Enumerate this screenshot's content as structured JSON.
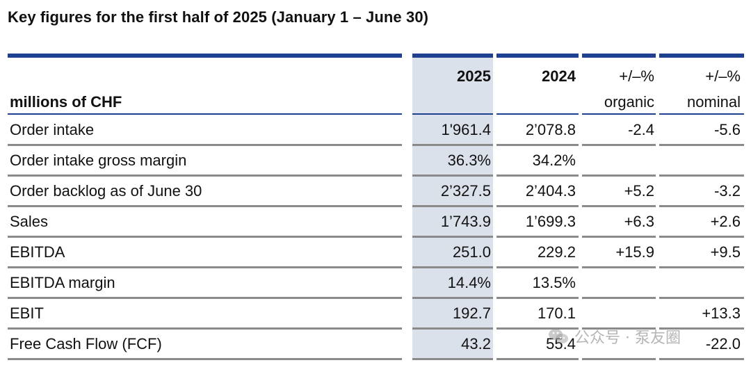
{
  "title": "Key figures for the first half of 2025 (January 1 – June 30)",
  "header": {
    "label_col": "millions of CHF",
    "col_2025": "2025",
    "col_2024": "2024",
    "col_organic_top": "+/–%",
    "col_organic_bottom": "organic",
    "col_nominal_top": "+/–%",
    "col_nominal_bottom": "nominal"
  },
  "rows": [
    {
      "label": "Order intake",
      "v2025": "1'961.4",
      "v2024": "2’078.8",
      "organic": "-2.4",
      "nominal": "-5.6"
    },
    {
      "label": "Order intake gross margin",
      "v2025": "36.3%",
      "v2024": "34.2%",
      "organic": "",
      "nominal": ""
    },
    {
      "label": "Order backlog as of June 30",
      "v2025": "2’327.5",
      "v2024": "2’404.3",
      "organic": "+5.2",
      "nominal": "-3.2"
    },
    {
      "label": "Sales",
      "v2025": "1’743.9",
      "v2024": "1’699.3",
      "organic": "+6.3",
      "nominal": "+2.6"
    },
    {
      "label": "EBITDA",
      "v2025": "251.0",
      "v2024": "229.2",
      "organic": "+15.9",
      "nominal": "+9.5"
    },
    {
      "label": "EBITDA margin",
      "v2025": "14.4%",
      "v2024": "13.5%",
      "organic": "",
      "nominal": ""
    },
    {
      "label": "EBIT",
      "v2025": "192.7",
      "v2024": "170.1",
      "organic": "",
      "nominal": "+13.3"
    },
    {
      "label": "Free Cash Flow (FCF)",
      "v2025": "43.2",
      "v2024": "55.4",
      "organic": "",
      "nominal": "-22.0"
    }
  ],
  "watermark": {
    "text": "公众号 · 泵友圈",
    "icon": "wechat-icon"
  },
  "colors": {
    "accent_rule": "#1f3f8f",
    "row_rule": "#8a8a8a",
    "highlight_column": "#dbe1ea"
  }
}
